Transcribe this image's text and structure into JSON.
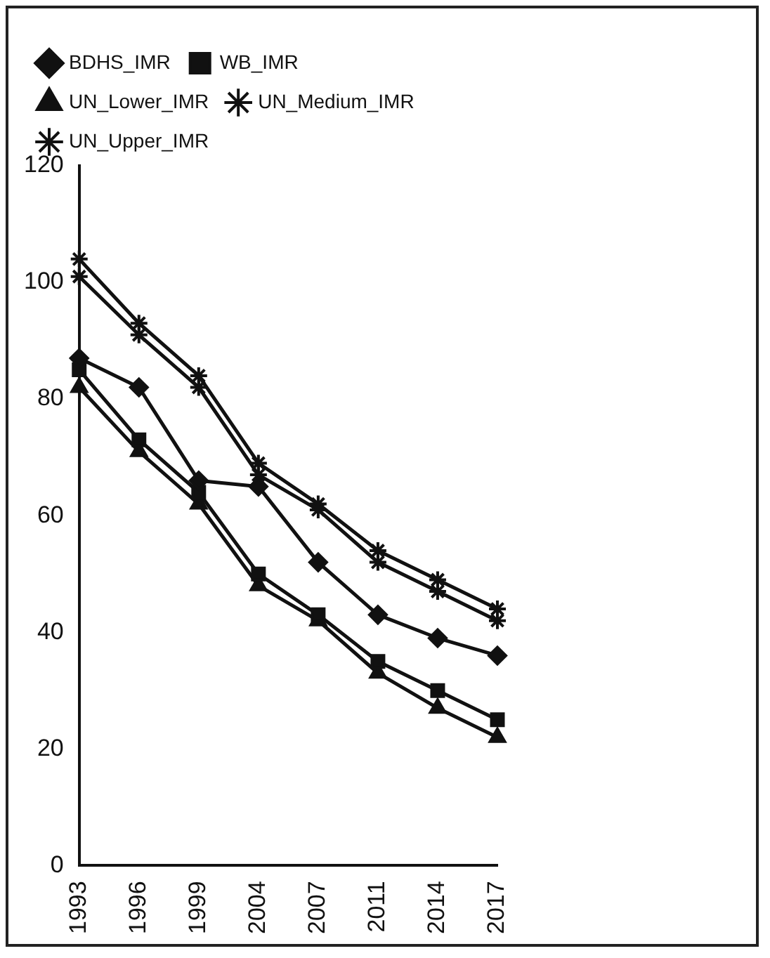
{
  "chart_data": {
    "type": "line",
    "categories": [
      "1993",
      "1996",
      "1999",
      "2004",
      "2007",
      "2011",
      "2014",
      "2017"
    ],
    "series": [
      {
        "name": "BDHS_IMR",
        "color": "#111111",
        "marker": "diamond",
        "values": [
          87,
          82,
          66,
          65,
          52,
          43,
          39,
          36
        ]
      },
      {
        "name": "WB_IMR",
        "color": "#111111",
        "marker": "square",
        "values": [
          85,
          73,
          64,
          50,
          43,
          35,
          30,
          25
        ]
      },
      {
        "name": "UN_Lower_IMR",
        "color": "#111111",
        "marker": "triangle",
        "values": [
          82,
          71,
          62,
          48,
          42,
          33,
          27,
          22
        ]
      },
      {
        "name": "UN_Medium_IMR",
        "color": "#111111",
        "marker": "cross",
        "values": [
          101,
          91,
          82,
          67,
          61,
          52,
          47,
          42
        ]
      },
      {
        "name": "UN_Upper_IMR",
        "color": "#111111",
        "marker": "cross",
        "values": [
          104,
          93,
          84,
          69,
          62,
          54,
          49,
          44
        ]
      }
    ],
    "ylim": [
      0,
      120
    ],
    "yticks": [
      0,
      20,
      40,
      60,
      80,
      100,
      120
    ],
    "grid": false,
    "legend": "top",
    "line_style": "solid"
  }
}
